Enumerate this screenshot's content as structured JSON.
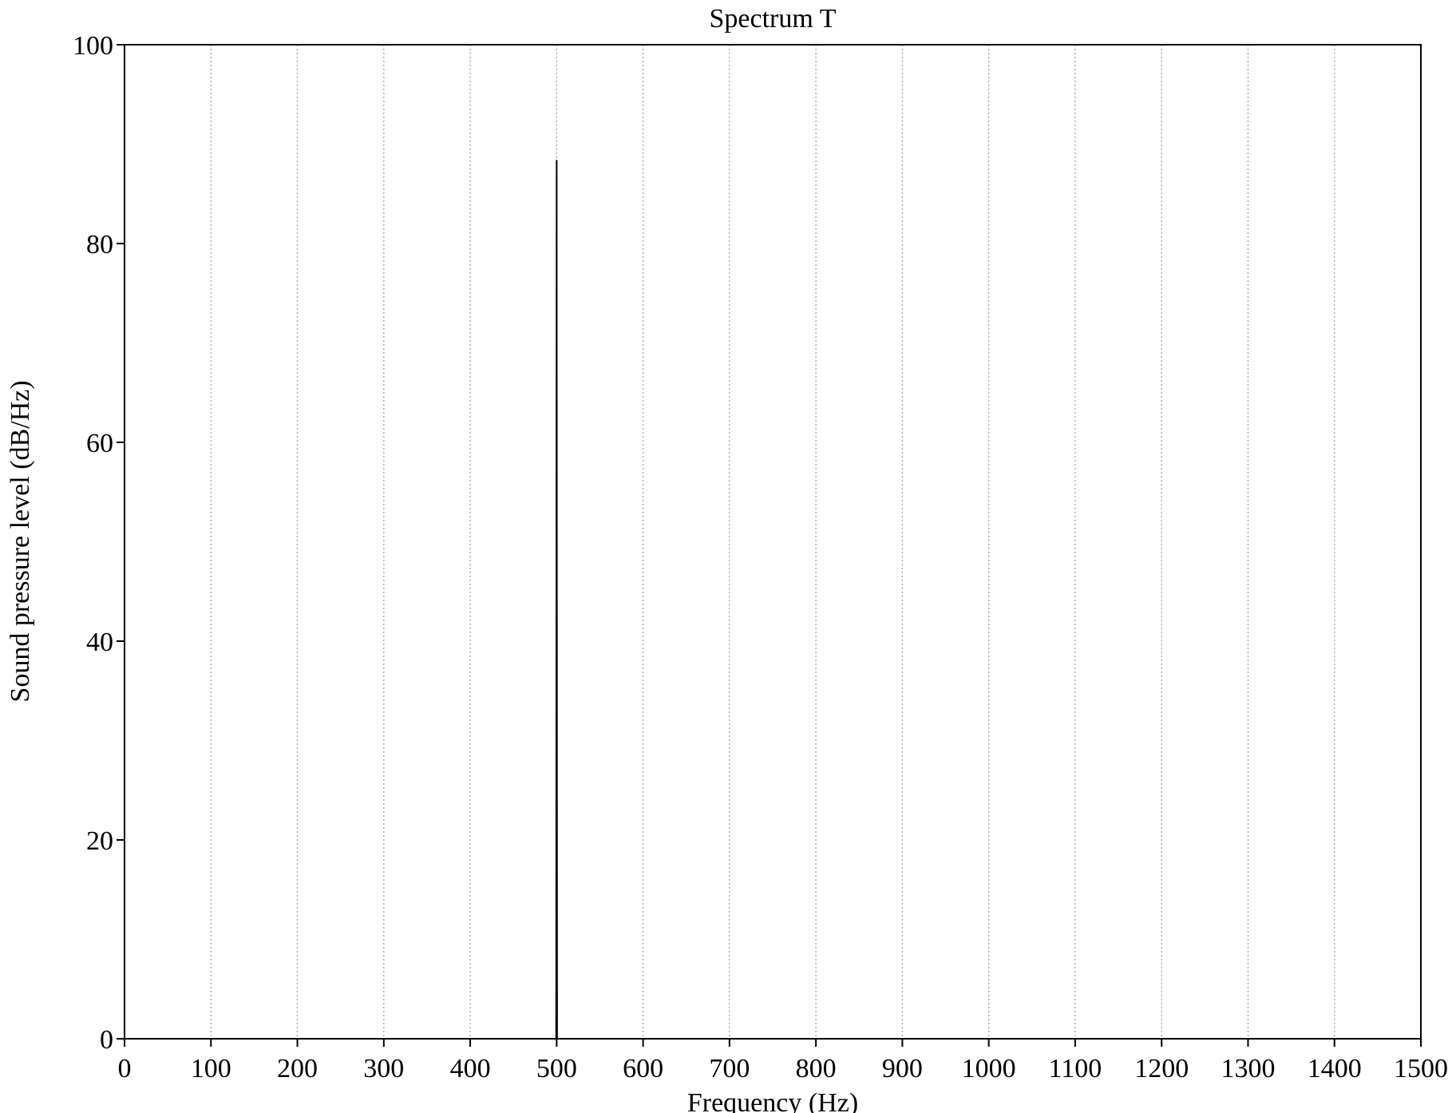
{
  "chart_data": {
    "type": "line",
    "title": "Spectrum T",
    "xlabel": "Frequency (Hz)",
    "ylabel": "Sound pressure level (dB/Hz)",
    "xlim": [
      0,
      1500
    ],
    "ylim": [
      0,
      100
    ],
    "xticks": [
      0,
      100,
      200,
      300,
      400,
      500,
      600,
      700,
      800,
      900,
      1000,
      1100,
      1200,
      1300,
      1400,
      1500
    ],
    "xtick_labels": [
      "0",
      "100",
      "200",
      "300",
      "400",
      "500",
      "600",
      "700",
      "800",
      "900",
      "1000",
      "1100",
      "1200",
      "1300",
      "1400",
      "1500"
    ],
    "yticks": [
      0,
      20,
      40,
      60,
      80,
      100
    ],
    "ytick_labels": [
      "0",
      "20",
      "40",
      "60",
      "80",
      "100"
    ],
    "grid": "vertical dotted at x ticks",
    "series": [
      {
        "x": [
          0,
          499.5,
          500,
          500.5,
          1500
        ],
        "y": [
          0,
          0,
          88.4,
          0,
          0
        ]
      }
    ],
    "colors": {
      "line": "#000000",
      "grid": "#9a9a9a",
      "axis": "#000000"
    }
  }
}
